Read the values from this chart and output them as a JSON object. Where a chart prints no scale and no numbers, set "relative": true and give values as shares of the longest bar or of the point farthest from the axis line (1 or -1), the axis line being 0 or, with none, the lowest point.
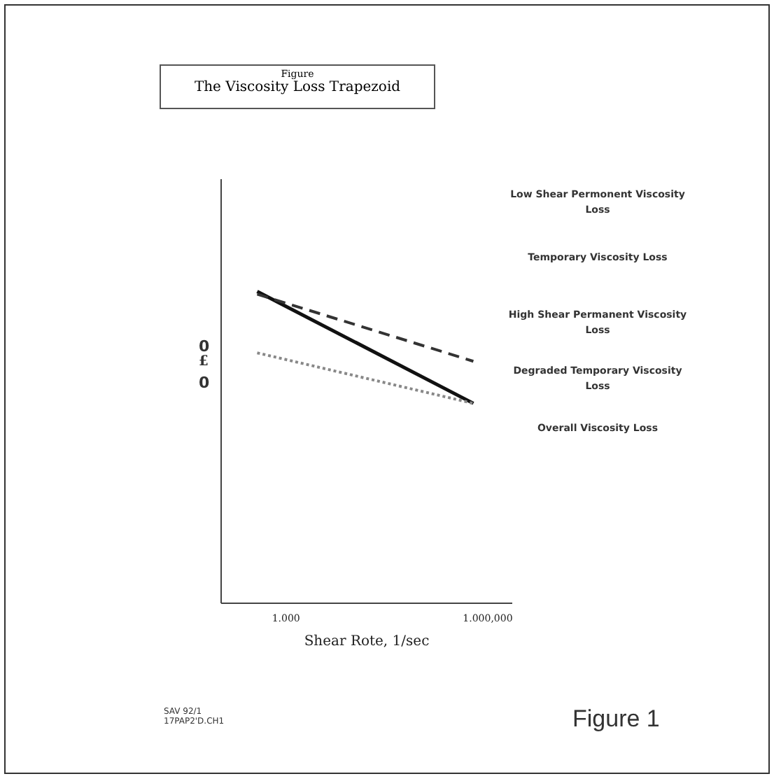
{
  "chart_data": {
    "type": "line",
    "title": "Figure",
    "subtitle": "The Viscosity Loss Trapezoid",
    "xlabel": "Shear Rote, 1/sec",
    "relative": true,
    "grid": false,
    "legend": false,
    "marker": "none",
    "categories": [
      null,
      null,
      "1.000",
      null,
      null,
      null,
      null,
      null,
      null,
      null,
      null,
      null,
      null,
      null,
      null,
      null,
      "1.000,000"
    ],
    "series": [
      {
        "values": [
          1,
          null,
          null,
          null,
          null,
          null,
          null,
          null,
          null,
          null,
          null,
          null,
          null,
          null,
          null,
          0.641,
          null
        ],
        "color": "#111111",
        "line_style": "solid"
      },
      {
        "values": [
          0.991,
          null,
          null,
          null,
          null,
          null,
          null,
          null,
          null,
          null,
          null,
          null,
          null,
          null,
          null,
          0.776,
          null
        ],
        "color": "#333333",
        "line_style": "dashed"
      },
      {
        "values": [
          0.803,
          null,
          null,
          null,
          null,
          null,
          null,
          null,
          null,
          null,
          null,
          null,
          null,
          null,
          null,
          0.641,
          null
        ],
        "color": "#888888",
        "line_style": "dotted"
      }
    ],
    "annotations": [
      "0",
      "£",
      "0",
      "Low Shear Permonent Viscosity Loss",
      "Temporary Viscosity Loss",
      "High Shear Permanent Viscosity Loss",
      "Degraded Temporary Viscosity Loss",
      "Overall Viscosity Loss",
      "SAV 92/1",
      "17PAP2'D.CH1",
      "Figure 1"
    ]
  }
}
